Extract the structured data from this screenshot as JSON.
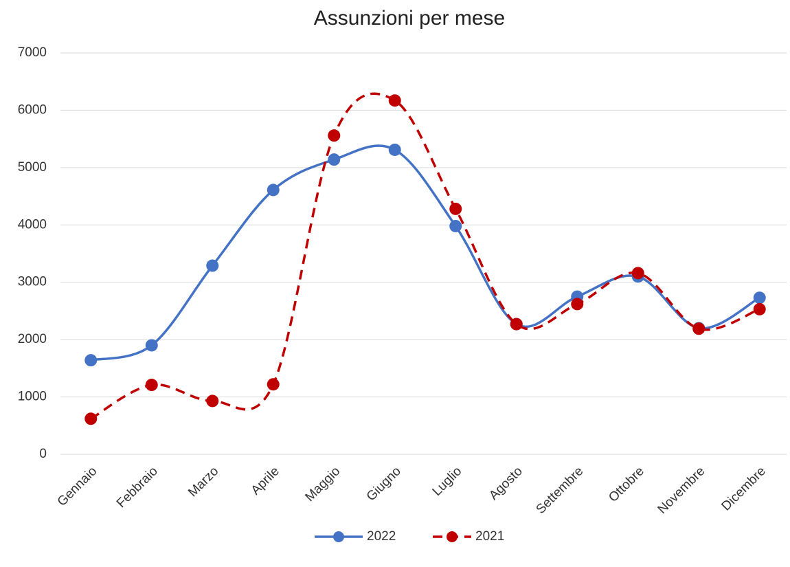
{
  "chart_data": {
    "type": "line",
    "title": "Assunzioni per mese",
    "categories": [
      "Gennaio",
      "Febbraio",
      "Marzo",
      "Aprile",
      "Maggio",
      "Giugno",
      "Luglio",
      "Agosto",
      "Settembre",
      "Ottobre",
      "Novembre",
      "Dicembre"
    ],
    "series": [
      {
        "name": "2022",
        "color": "#4472c4",
        "dash": false,
        "smooth": true,
        "values": [
          1640,
          1900,
          3290,
          4610,
          5140,
          5310,
          3980,
          2270,
          2750,
          3100,
          2200,
          2730
        ]
      },
      {
        "name": "2021",
        "color": "#c00000",
        "dash": true,
        "smooth": true,
        "values": [
          620,
          1210,
          930,
          1220,
          5560,
          6170,
          4280,
          2270,
          2620,
          3160,
          2190,
          2530
        ]
      }
    ],
    "ylim": [
      0,
      7000
    ],
    "yticks": [
      0,
      1000,
      2000,
      3000,
      4000,
      5000,
      6000,
      7000
    ],
    "grid": true,
    "legend": "bottom"
  }
}
